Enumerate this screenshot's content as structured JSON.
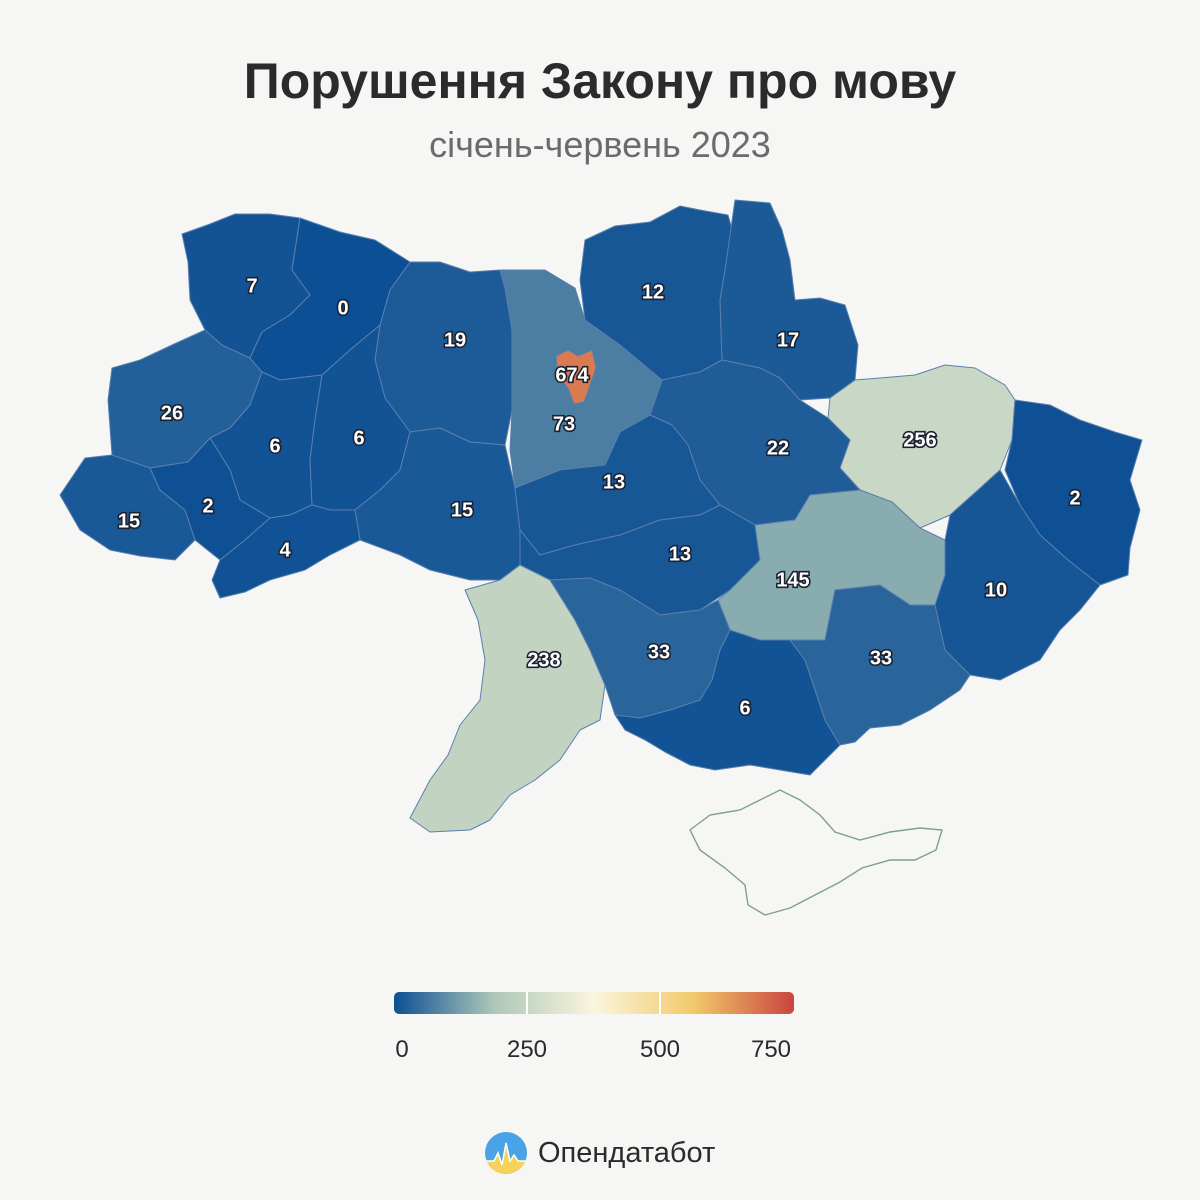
{
  "title": "Порушення Закону про мову",
  "subtitle": "січень-червень 2023",
  "legend": {
    "min": 0,
    "max": 750,
    "labels": [
      "0",
      "250",
      "500",
      "750"
    ],
    "colors": [
      "#0d4f94",
      "#adc7b8",
      "#fbf5dd",
      "#f2c96b",
      "#c9443e"
    ]
  },
  "brand": {
    "name": "Опендатабот"
  },
  "regions": [
    {
      "id": "volyn",
      "label": "7",
      "value": 7
    },
    {
      "id": "rivne",
      "label": "0",
      "value": 0
    },
    {
      "id": "zhytomyr",
      "label": "19",
      "value": 19
    },
    {
      "id": "kyiv-oblast",
      "label": "73",
      "value": 73
    },
    {
      "id": "kyiv-city",
      "label": "674",
      "value": 674
    },
    {
      "id": "chernihiv",
      "label": "12",
      "value": 12
    },
    {
      "id": "sumy",
      "label": "17",
      "value": 17
    },
    {
      "id": "kharkiv",
      "label": "256",
      "value": 256
    },
    {
      "id": "luhansk",
      "label": "2",
      "value": 2
    },
    {
      "id": "lviv",
      "label": "26",
      "value": 26
    },
    {
      "id": "ternopil",
      "label": "6",
      "value": 6
    },
    {
      "id": "khmelnytskyi",
      "label": "6",
      "value": 6
    },
    {
      "id": "vinnytsia",
      "label": "15",
      "value": 15
    },
    {
      "id": "cherkasy",
      "label": "13",
      "value": 13
    },
    {
      "id": "poltava",
      "label": "22",
      "value": 22
    },
    {
      "id": "zakarpattia",
      "label": "15",
      "value": 15
    },
    {
      "id": "ivano-frankivsk",
      "label": "2",
      "value": 2
    },
    {
      "id": "chernivtsi",
      "label": "4",
      "value": 4
    },
    {
      "id": "kirovohrad",
      "label": "13",
      "value": 13
    },
    {
      "id": "dnipropetrovsk",
      "label": "145",
      "value": 145
    },
    {
      "id": "donetsk",
      "label": "10",
      "value": 10
    },
    {
      "id": "odesa",
      "label": "238",
      "value": 238
    },
    {
      "id": "mykolaiv",
      "label": "33",
      "value": 33
    },
    {
      "id": "kherson",
      "label": "6",
      "value": 6
    },
    {
      "id": "zaporizhzhia",
      "label": "33",
      "value": 33
    }
  ]
}
